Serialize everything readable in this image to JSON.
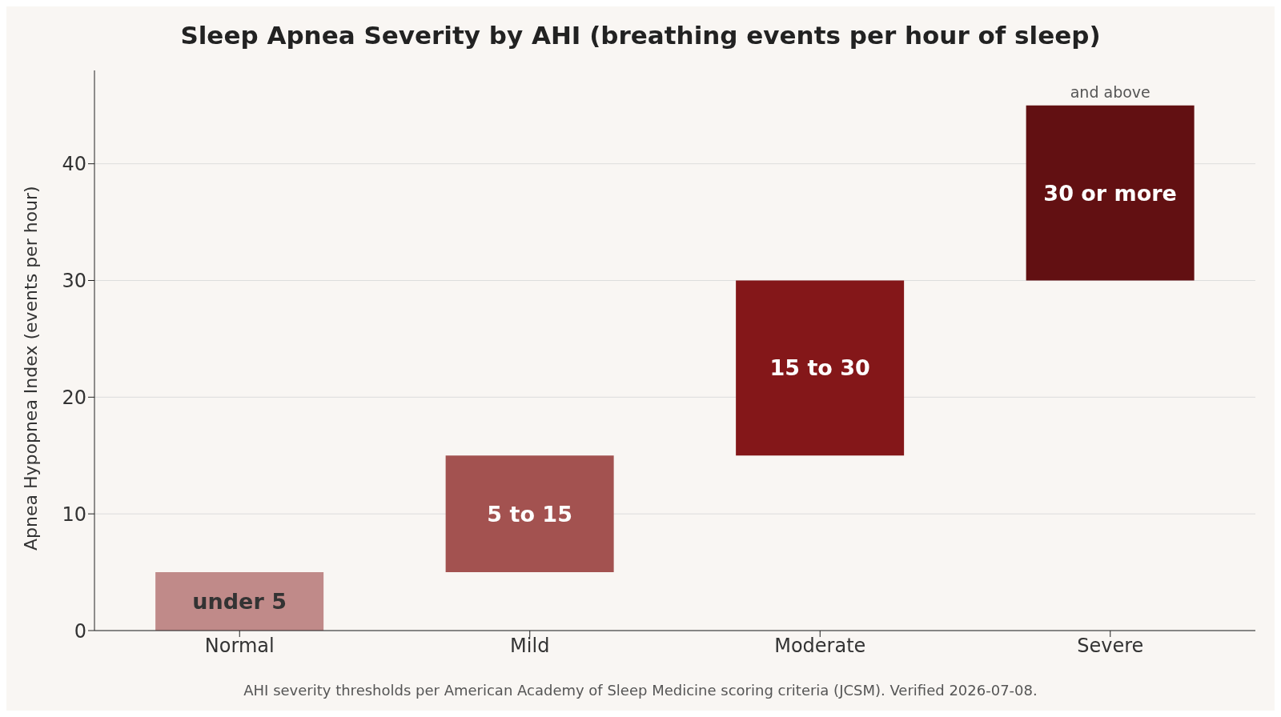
{
  "chart_data": {
    "type": "bar",
    "title": "Sleep Apnea Severity by AHI (breathing events per hour of sleep)",
    "ylabel": "Apnea Hypopnea Index (events per hour)",
    "categories": [
      "Normal",
      "Mild",
      "Moderate",
      "Severe"
    ],
    "values": [
      5,
      10,
      15,
      15
    ],
    "base": [
      0,
      5,
      15,
      30
    ],
    "colors": [
      "#c08a89",
      "#a35250",
      "#841719",
      "#621012"
    ],
    "ylim": [
      0,
      48
    ],
    "yticks": [
      0,
      10,
      20,
      30,
      40
    ],
    "grid": "y",
    "legend": false,
    "annotations": [
      "under 5",
      "5 to 15",
      "15 to 30",
      "30 or more",
      {
        "text": "and above",
        "x": "Severe",
        "y": 45
      },
      "AHI severity thresholds per American Academy of Sleep Medicine scoring criteria (JCSM). Verified 2026-07-08."
    ]
  }
}
